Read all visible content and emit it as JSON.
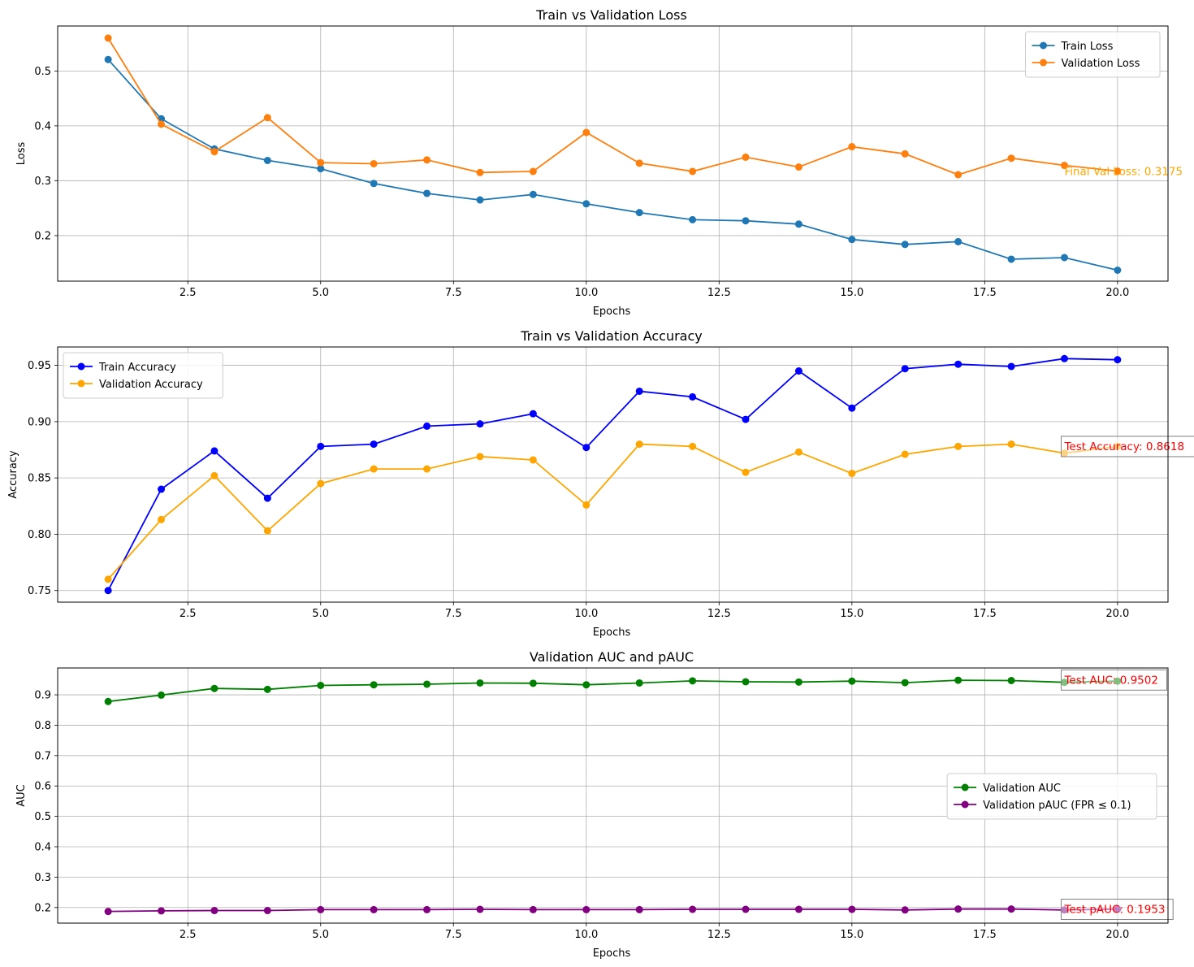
{
  "chart_data": [
    {
      "type": "line",
      "title": "Train vs Validation Loss",
      "xlabel": "Epochs",
      "ylabel": "Loss",
      "xlim": [
        0.05,
        20.95
      ],
      "ylim": [
        0.117,
        0.582
      ],
      "xticks": [
        2.5,
        5.0,
        7.5,
        10.0,
        12.5,
        15.0,
        17.5,
        20.0
      ],
      "xtick_labels": [
        "2.5",
        "5.0",
        "7.5",
        "10.0",
        "12.5",
        "15.0",
        "17.5",
        "20.0"
      ],
      "yticks": [
        0.2,
        0.3,
        0.4,
        0.5
      ],
      "ytick_labels": [
        "0.2",
        "0.3",
        "0.4",
        "0.5"
      ],
      "grid": true,
      "legend_position": "upper right",
      "x": [
        1,
        2,
        3,
        4,
        5,
        6,
        7,
        8,
        9,
        10,
        11,
        12,
        13,
        14,
        15,
        16,
        17,
        18,
        19,
        20
      ],
      "series": [
        {
          "name": "Train Loss",
          "color": "#1f77b4",
          "values": [
            0.521,
            0.413,
            0.358,
            0.337,
            0.322,
            0.295,
            0.277,
            0.265,
            0.275,
            0.258,
            0.242,
            0.229,
            0.227,
            0.221,
            0.193,
            0.184,
            0.189,
            0.157,
            0.16,
            0.137
          ]
        },
        {
          "name": "Validation Loss",
          "color": "#ff7f0e",
          "values": [
            0.56,
            0.403,
            0.353,
            0.415,
            0.333,
            0.331,
            0.338,
            0.315,
            0.317,
            0.388,
            0.332,
            0.317,
            0.343,
            0.325,
            0.362,
            0.349,
            0.311,
            0.341,
            0.328,
            0.3175
          ]
        }
      ],
      "annotations": [
        {
          "text": "Final Val Loss: 0.3175",
          "x": 19,
          "y": 0.3175,
          "color": "#ffa500",
          "boxed": false
        }
      ]
    },
    {
      "type": "line",
      "title": "Train vs Validation Accuracy",
      "xlabel": "Epochs",
      "ylabel": "Accuracy",
      "xlim": [
        0.05,
        20.95
      ],
      "ylim": [
        0.7397,
        0.9663
      ],
      "xticks": [
        2.5,
        5.0,
        7.5,
        10.0,
        12.5,
        15.0,
        17.5,
        20.0
      ],
      "xtick_labels": [
        "2.5",
        "5.0",
        "7.5",
        "10.0",
        "12.5",
        "15.0",
        "17.5",
        "20.0"
      ],
      "yticks": [
        0.75,
        0.8,
        0.85,
        0.9,
        0.95
      ],
      "ytick_labels": [
        "0.75",
        "0.80",
        "0.85",
        "0.90",
        "0.95"
      ],
      "grid": true,
      "legend_position": "upper left",
      "x": [
        1,
        2,
        3,
        4,
        5,
        6,
        7,
        8,
        9,
        10,
        11,
        12,
        13,
        14,
        15,
        16,
        17,
        18,
        19,
        20
      ],
      "series": [
        {
          "name": "Train Accuracy",
          "color": "#0000ff",
          "values": [
            0.75,
            0.84,
            0.874,
            0.832,
            0.878,
            0.88,
            0.896,
            0.898,
            0.907,
            0.877,
            0.927,
            0.922,
            0.902,
            0.945,
            0.912,
            0.947,
            0.951,
            0.949,
            0.956,
            0.955
          ]
        },
        {
          "name": "Validation Accuracy",
          "color": "#ffa500",
          "values": [
            0.76,
            0.813,
            0.852,
            0.803,
            0.845,
            0.858,
            0.858,
            0.869,
            0.866,
            0.826,
            0.88,
            0.878,
            0.855,
            0.873,
            0.854,
            0.871,
            0.878,
            0.88,
            0.872,
            0.878
          ]
        }
      ],
      "annotations": [
        {
          "text": "Test Accuracy: 0.8618",
          "x": 19,
          "y": 0.8783,
          "color": "#ff0000",
          "boxed": true
        }
      ]
    },
    {
      "type": "line",
      "title": "Validation AUC and pAUC",
      "xlabel": "Epochs",
      "ylabel": "AUC",
      "xlim": [
        0.05,
        20.95
      ],
      "ylim": [
        0.1486,
        0.9884
      ],
      "xticks": [
        2.5,
        5.0,
        7.5,
        10.0,
        12.5,
        15.0,
        17.5,
        20.0
      ],
      "xtick_labels": [
        "2.5",
        "5.0",
        "7.5",
        "10.0",
        "12.5",
        "15.0",
        "17.5",
        "20.0"
      ],
      "yticks": [
        0.2,
        0.3,
        0.4,
        0.5,
        0.6,
        0.7,
        0.8,
        0.9
      ],
      "ytick_labels": [
        "0.2",
        "0.3",
        "0.4",
        "0.5",
        "0.6",
        "0.7",
        "0.8",
        "0.9"
      ],
      "grid": true,
      "legend_position": "center right",
      "x": [
        1,
        2,
        3,
        4,
        5,
        6,
        7,
        8,
        9,
        10,
        11,
        12,
        13,
        14,
        15,
        16,
        17,
        18,
        19,
        20
      ],
      "series": [
        {
          "name": "Validation AUC",
          "color": "#008000",
          "values": [
            0.878,
            0.899,
            0.921,
            0.918,
            0.931,
            0.933,
            0.935,
            0.939,
            0.938,
            0.933,
            0.939,
            0.946,
            0.943,
            0.942,
            0.945,
            0.94,
            0.948,
            0.947,
            0.941,
            0.945
          ]
        },
        {
          "name": "Validation pAUC (FPR ≤ 0.1)",
          "color": "#800080",
          "values": [
            0.187,
            0.189,
            0.19,
            0.19,
            0.193,
            0.193,
            0.193,
            0.194,
            0.193,
            0.193,
            0.193,
            0.194,
            0.194,
            0.194,
            0.194,
            0.192,
            0.195,
            0.195,
            0.192,
            0.195
          ]
        }
      ],
      "annotations": [
        {
          "text": "Test AUC: 0.9502",
          "x": 19,
          "y": 0.9502,
          "color": "#ff0000",
          "boxed": true
        },
        {
          "text": "Test pAUC: 0.1953",
          "x": 19,
          "y": 0.1953,
          "color": "#ff0000",
          "boxed": true
        }
      ]
    }
  ]
}
